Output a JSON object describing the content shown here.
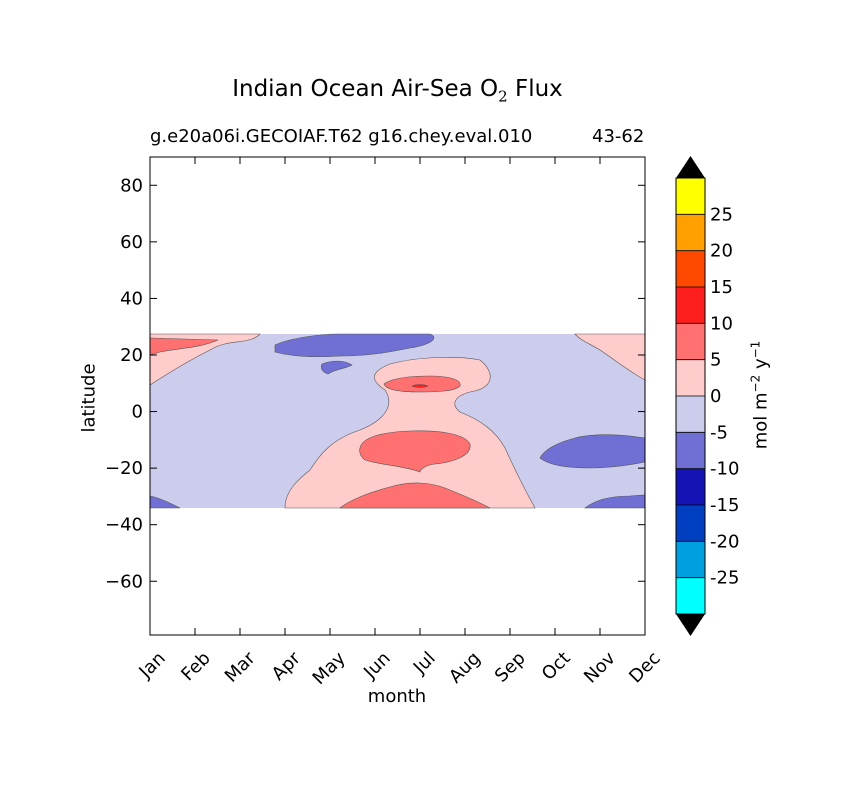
{
  "chart_data": {
    "type": "heatmap",
    "title_main": "Indian Ocean Air-Sea O",
    "title_sub": "2",
    "title_end": "Flux",
    "subtitle_left": "g.e20a06i.GECOIAF.T62 g16.chey.eval.010",
    "subtitle_right": "43-62",
    "xlabel": "month",
    "ylabel": "latitude",
    "months": [
      "Jan",
      "Feb",
      "Mar",
      "Apr",
      "May",
      "Jun",
      "Jul",
      "Aug",
      "Sep",
      "Oct",
      "Nov",
      "Dec"
    ],
    "yticks": [
      80,
      60,
      40,
      20,
      0,
      -20,
      -40,
      -60
    ],
    "ylim": [
      -79,
      90
    ],
    "data_lat_range": [
      -34,
      27
    ],
    "colorbar": {
      "label_main": "mol m",
      "label_exp1": "−2",
      "label_mid": " y",
      "label_exp2": "−1",
      "levels": [
        "-25",
        "-20",
        "-15",
        "-10",
        "-5",
        "0",
        "5",
        "10",
        "15",
        "20",
        "25"
      ],
      "colors": [
        "#00ffff",
        "#00a0e0",
        "#0040c0",
        "#1414b4",
        "#7070d4",
        "#cccced",
        "#ffcccc",
        "#ff7070",
        "#ff1e1e",
        "#ff4800",
        "#ffa000",
        "#ffff00"
      ],
      "extend": "both"
    },
    "regions": [
      {
        "level": "0 to 5",
        "color": "#ffcccc",
        "description": "north-west warm band and central-south tongue"
      },
      {
        "level": "5 to 10",
        "color": "#ff7070",
        "description": "outgassing maxima Jun-Aug"
      },
      {
        "level": "10 to 15",
        "color": "#ff1e1e",
        "description": "small peak near Jul, 9N"
      },
      {
        "level": "-10 to -5",
        "color": "#7070d4",
        "description": "uptake patches"
      }
    ]
  }
}
